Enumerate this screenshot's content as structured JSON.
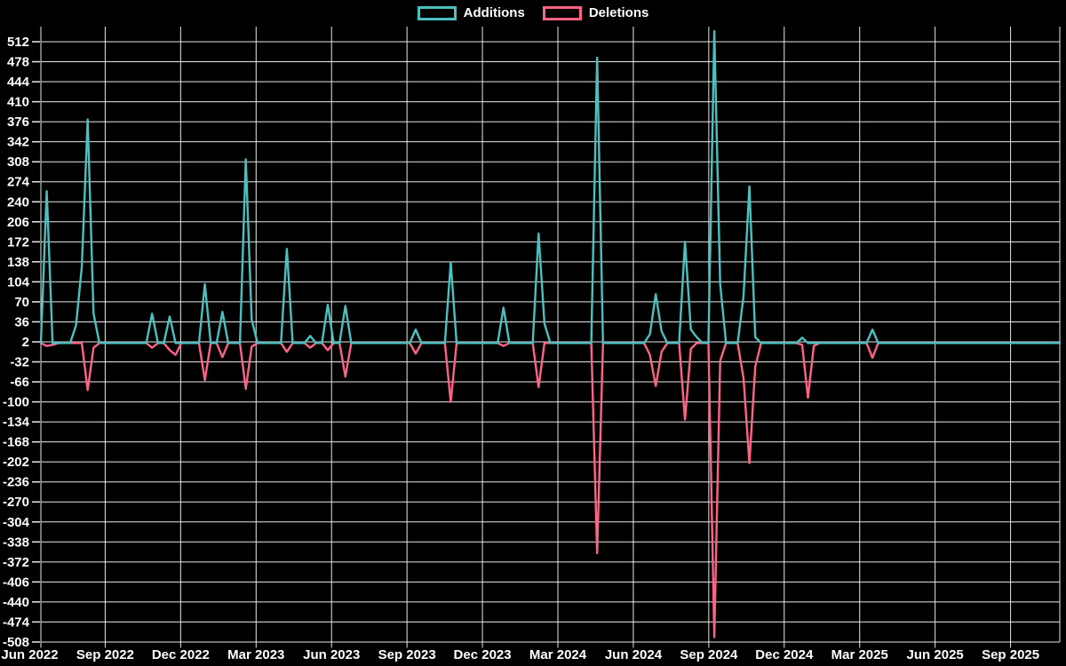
{
  "legend": {
    "position": "top",
    "items": [
      {
        "label": "Additions",
        "color": "#4bc0c0"
      },
      {
        "label": "Deletions",
        "color": "#ff6384"
      }
    ]
  },
  "chart_data": {
    "type": "line",
    "title": "",
    "xlabel": "",
    "ylabel": "",
    "x_unit": "week",
    "x_range": [
      "Jun 2022",
      "Sep 2025"
    ],
    "grid": true,
    "legend_position": "top",
    "background_color": "#000000",
    "grid_color": "#e8e8e8",
    "text_color": "#ffffff",
    "ylim": [
      -508,
      533
    ],
    "y_ticks": [
      512,
      478,
      444,
      410,
      376,
      342,
      308,
      274,
      240,
      206,
      172,
      138,
      104,
      70,
      36,
      2,
      -32,
      -66,
      -100,
      -134,
      -168,
      -202,
      -236,
      -270,
      -304,
      -338,
      -372,
      -406,
      -440,
      -474,
      -508
    ],
    "x_tick_labels": [
      "Jun 2022",
      "Sep 2022",
      "Dec 2022",
      "Mar 2023",
      "Jun 2023",
      "Sep 2023",
      "Dec 2023",
      "Mar 2024",
      "Jun 2024",
      "Sep 2024",
      "Dec 2024",
      "Mar 2025",
      "Jun 2025",
      "Sep 2025"
    ],
    "series": [
      {
        "name": "Additions",
        "color": "#4bc0c0",
        "values": [
          0,
          258,
          0,
          0,
          0,
          0,
          30,
          130,
          380,
          50,
          0,
          0,
          0,
          0,
          0,
          0,
          0,
          0,
          0,
          50,
          0,
          0,
          45,
          0,
          0,
          0,
          0,
          0,
          100,
          0,
          0,
          53,
          0,
          0,
          0,
          312,
          40,
          0,
          0,
          0,
          0,
          0,
          160,
          0,
          0,
          0,
          12,
          0,
          0,
          65,
          0,
          0,
          63,
          0,
          0,
          0,
          0,
          0,
          0,
          0,
          0,
          0,
          0,
          0,
          23,
          0,
          0,
          0,
          0,
          0,
          137,
          0,
          0,
          0,
          0,
          0,
          0,
          0,
          0,
          60,
          0,
          0,
          0,
          0,
          0,
          186,
          33,
          0,
          0,
          0,
          0,
          0,
          0,
          0,
          0,
          485,
          0,
          0,
          0,
          0,
          0,
          0,
          0,
          0,
          15,
          83,
          20,
          0,
          0,
          0,
          172,
          23,
          10,
          0,
          0,
          530,
          100,
          0,
          0,
          0,
          80,
          266,
          10,
          0,
          0,
          0,
          0,
          0,
          0,
          0,
          9,
          0,
          0,
          0,
          0,
          0,
          0,
          0,
          0,
          0,
          0,
          0,
          23,
          0,
          0,
          0,
          0,
          0,
          0,
          0,
          0,
          0,
          0,
          0,
          0,
          0,
          0,
          0,
          0,
          0,
          0,
          0,
          0,
          0,
          0,
          0,
          0,
          0,
          0,
          0,
          0,
          0,
          0,
          0,
          0
        ]
      },
      {
        "name": "Deletions",
        "color": "#ff6384",
        "values": [
          0,
          -5,
          -3,
          0,
          0,
          0,
          0,
          0,
          -80,
          -8,
          0,
          0,
          0,
          0,
          0,
          0,
          0,
          0,
          0,
          -8,
          0,
          0,
          -12,
          -20,
          0,
          0,
          0,
          0,
          -63,
          0,
          0,
          -24,
          0,
          0,
          0,
          -78,
          -6,
          0,
          0,
          0,
          0,
          0,
          -15,
          0,
          0,
          0,
          -8,
          0,
          0,
          -12,
          0,
          0,
          -57,
          0,
          0,
          0,
          0,
          0,
          0,
          0,
          0,
          0,
          0,
          0,
          -18,
          0,
          0,
          0,
          0,
          0,
          -100,
          0,
          0,
          0,
          0,
          0,
          0,
          0,
          0,
          -5,
          0,
          0,
          0,
          0,
          0,
          -75,
          0,
          0,
          0,
          0,
          0,
          0,
          0,
          0,
          0,
          -357,
          0,
          0,
          0,
          0,
          0,
          0,
          0,
          0,
          -20,
          -73,
          -15,
          0,
          0,
          0,
          -130,
          -10,
          0,
          0,
          0,
          -500,
          -30,
          0,
          0,
          0,
          -60,
          -204,
          -40,
          0,
          0,
          0,
          0,
          0,
          0,
          0,
          -3,
          -93,
          -5,
          0,
          0,
          0,
          0,
          0,
          0,
          0,
          0,
          0,
          -25,
          0,
          0,
          0,
          0,
          0,
          0,
          0,
          0,
          0,
          0,
          0,
          0,
          0,
          0,
          0,
          0,
          0,
          0,
          0,
          0,
          0,
          0,
          0,
          0,
          0,
          0,
          0,
          0,
          0,
          0,
          0,
          0
        ]
      }
    ]
  }
}
